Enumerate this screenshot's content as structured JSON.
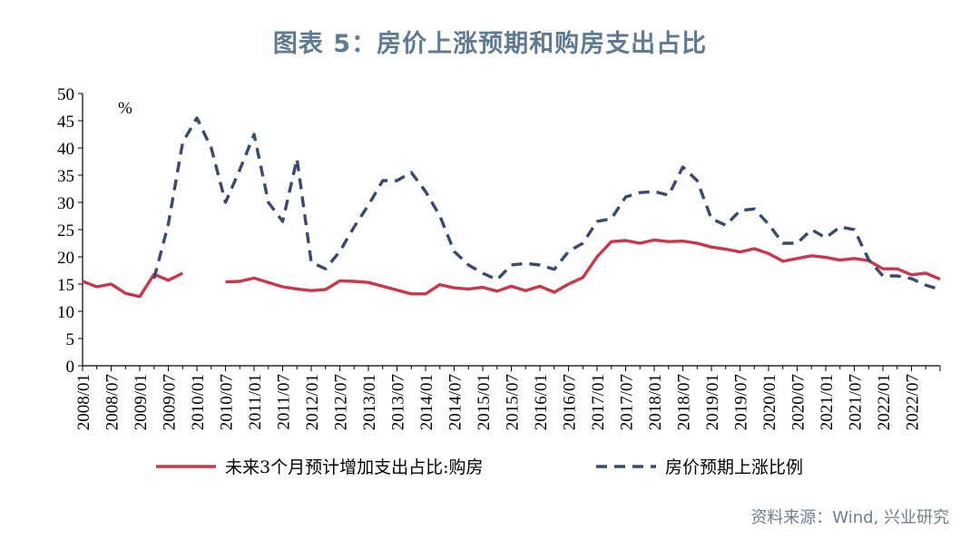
{
  "title": "图表 5：房价上涨预期和购房支出占比",
  "source": "资料来源：Wind, 兴业研究",
  "chart_data": {
    "type": "line",
    "unit_label": "%",
    "ylim": [
      0,
      50
    ],
    "y_ticks": [
      0,
      5,
      10,
      15,
      20,
      25,
      30,
      35,
      40,
      45,
      50
    ],
    "x_tick_labels": [
      "2008/01",
      "2008/07",
      "2009/01",
      "2009/07",
      "2010/01",
      "2010/07",
      "2011/01",
      "2011/07",
      "2012/01",
      "2012/07",
      "2013/01",
      "2013/07",
      "2014/01",
      "2014/07",
      "2015/01",
      "2015/07",
      "2016/01",
      "2016/07",
      "2017/01",
      "2017/07",
      "2018/01",
      "2018/07",
      "2019/01",
      "2019/07",
      "2020/01",
      "2020/07",
      "2021/01",
      "2021/07",
      "2022/01",
      "2022/07"
    ],
    "grid": false,
    "legend_position": "bottom",
    "series": [
      {
        "name": "未来3个月预计增加支出占比:购房",
        "color": "#c8384a",
        "style": "solid",
        "points": [
          [
            "2008/01",
            15.5
          ],
          [
            "2008/04",
            14.5
          ],
          [
            "2008/07",
            15.0
          ],
          [
            "2008/10",
            13.3
          ],
          [
            "2009/01",
            12.7
          ],
          [
            "2009/04",
            16.8
          ],
          [
            "2009/07",
            15.7
          ],
          [
            "2009/10",
            17.0
          ],
          [
            "2010/07",
            15.4
          ],
          [
            "2010/10",
            15.5
          ],
          [
            "2011/01",
            16.1
          ],
          [
            "2011/04",
            15.3
          ],
          [
            "2011/07",
            14.5
          ],
          [
            "2011/10",
            14.1
          ],
          [
            "2012/01",
            13.8
          ],
          [
            "2012/04",
            14.0
          ],
          [
            "2012/07",
            15.6
          ],
          [
            "2012/10",
            15.5
          ],
          [
            "2013/01",
            15.3
          ],
          [
            "2013/04",
            14.6
          ],
          [
            "2013/07",
            13.9
          ],
          [
            "2013/10",
            13.2
          ],
          [
            "2014/01",
            13.2
          ],
          [
            "2014/04",
            14.9
          ],
          [
            "2014/07",
            14.3
          ],
          [
            "2014/10",
            14.1
          ],
          [
            "2015/01",
            14.4
          ],
          [
            "2015/04",
            13.7
          ],
          [
            "2015/07",
            14.6
          ],
          [
            "2015/10",
            13.8
          ],
          [
            "2016/01",
            14.6
          ],
          [
            "2016/04",
            13.5
          ],
          [
            "2016/07",
            15.0
          ],
          [
            "2016/10",
            16.2
          ],
          [
            "2017/01",
            20.0
          ],
          [
            "2017/04",
            22.8
          ],
          [
            "2017/07",
            23.0
          ],
          [
            "2017/10",
            22.5
          ],
          [
            "2018/01",
            23.1
          ],
          [
            "2018/04",
            22.8
          ],
          [
            "2018/07",
            22.9
          ],
          [
            "2018/10",
            22.5
          ],
          [
            "2019/01",
            21.8
          ],
          [
            "2019/04",
            21.4
          ],
          [
            "2019/07",
            20.9
          ],
          [
            "2019/10",
            21.5
          ],
          [
            "2020/01",
            20.6
          ],
          [
            "2020/04",
            19.2
          ],
          [
            "2020/07",
            19.7
          ],
          [
            "2020/10",
            20.2
          ],
          [
            "2021/01",
            19.9
          ],
          [
            "2021/04",
            19.4
          ],
          [
            "2021/07",
            19.7
          ],
          [
            "2021/10",
            19.3
          ],
          [
            "2022/01",
            17.8
          ],
          [
            "2022/04",
            17.8
          ],
          [
            "2022/07",
            16.7
          ],
          [
            "2022/10",
            17.0
          ],
          [
            "2023/01",
            15.9
          ]
        ]
      },
      {
        "name": "房价预期上涨比例",
        "color": "#3a4a6e",
        "style": "dashed",
        "points": [
          [
            "2009/04",
            16.0
          ],
          [
            "2009/07",
            26.0
          ],
          [
            "2009/10",
            41.0
          ],
          [
            "2010/01",
            45.5
          ],
          [
            "2010/04",
            40.0
          ],
          [
            "2010/07",
            30.0
          ],
          [
            "2010/10",
            36.0
          ],
          [
            "2011/01",
            42.5
          ],
          [
            "2011/04",
            30.0
          ],
          [
            "2011/07",
            26.5
          ],
          [
            "2011/10",
            38.0
          ],
          [
            "2012/01",
            19.0
          ],
          [
            "2012/04",
            17.8
          ],
          [
            "2012/07",
            21.0
          ],
          [
            "2012/10",
            25.5
          ],
          [
            "2013/01",
            29.5
          ],
          [
            "2013/04",
            34.0
          ],
          [
            "2013/07",
            34.0
          ],
          [
            "2013/10",
            35.5
          ],
          [
            "2014/01",
            32.0
          ],
          [
            "2014/04",
            27.5
          ],
          [
            "2014/07",
            21.0
          ],
          [
            "2014/10",
            18.5
          ],
          [
            "2015/01",
            17.0
          ],
          [
            "2015/04",
            15.8
          ],
          [
            "2015/07",
            18.5
          ],
          [
            "2015/10",
            18.8
          ],
          [
            "2016/01",
            18.5
          ],
          [
            "2016/04",
            17.7
          ],
          [
            "2016/07",
            21.0
          ],
          [
            "2016/10",
            22.5
          ],
          [
            "2017/01",
            26.5
          ],
          [
            "2017/04",
            27.0
          ],
          [
            "2017/07",
            31.0
          ],
          [
            "2017/10",
            31.8
          ],
          [
            "2018/01",
            32.0
          ],
          [
            "2018/04",
            31.3
          ],
          [
            "2018/07",
            36.5
          ],
          [
            "2018/10",
            34.0
          ],
          [
            "2019/01",
            27.0
          ],
          [
            "2019/04",
            25.8
          ],
          [
            "2019/07",
            28.5
          ],
          [
            "2019/10",
            28.8
          ],
          [
            "2020/01",
            26.0
          ],
          [
            "2020/04",
            22.5
          ],
          [
            "2020/07",
            22.5
          ],
          [
            "2020/10",
            25.0
          ],
          [
            "2021/01",
            23.5
          ],
          [
            "2021/04",
            25.5
          ],
          [
            "2021/07",
            25.0
          ],
          [
            "2021/10",
            19.5
          ],
          [
            "2022/01",
            16.5
          ],
          [
            "2022/04",
            16.5
          ],
          [
            "2022/07",
            16.0
          ],
          [
            "2022/10",
            14.8
          ],
          [
            "2023/01",
            14.0
          ]
        ]
      }
    ]
  }
}
